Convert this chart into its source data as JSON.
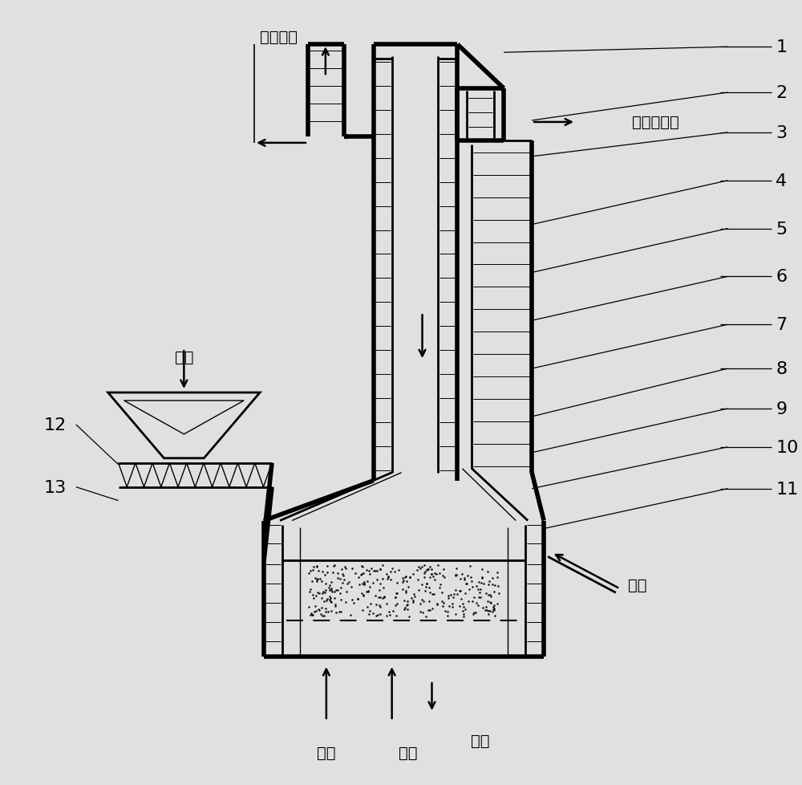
{
  "bg_color": "#e0e0e0",
  "labels": {
    "power": "发电系统",
    "gas": "气化热解气",
    "garbage": "垃圾",
    "water": "给水",
    "ash": "灰渣",
    "steam": "蕋汽",
    "air": "空气"
  },
  "numbers_right": [
    "1",
    "2",
    "3",
    "4",
    "5",
    "6",
    "7",
    "8",
    "9",
    "10",
    "11"
  ],
  "numbers_left": [
    "12",
    "13"
  ],
  "lw_thick": 4.0,
  "lw_med": 2.0,
  "lw_thin": 1.0,
  "lw_brick": 0.7,
  "fs_label": 14,
  "fs_num": 16
}
